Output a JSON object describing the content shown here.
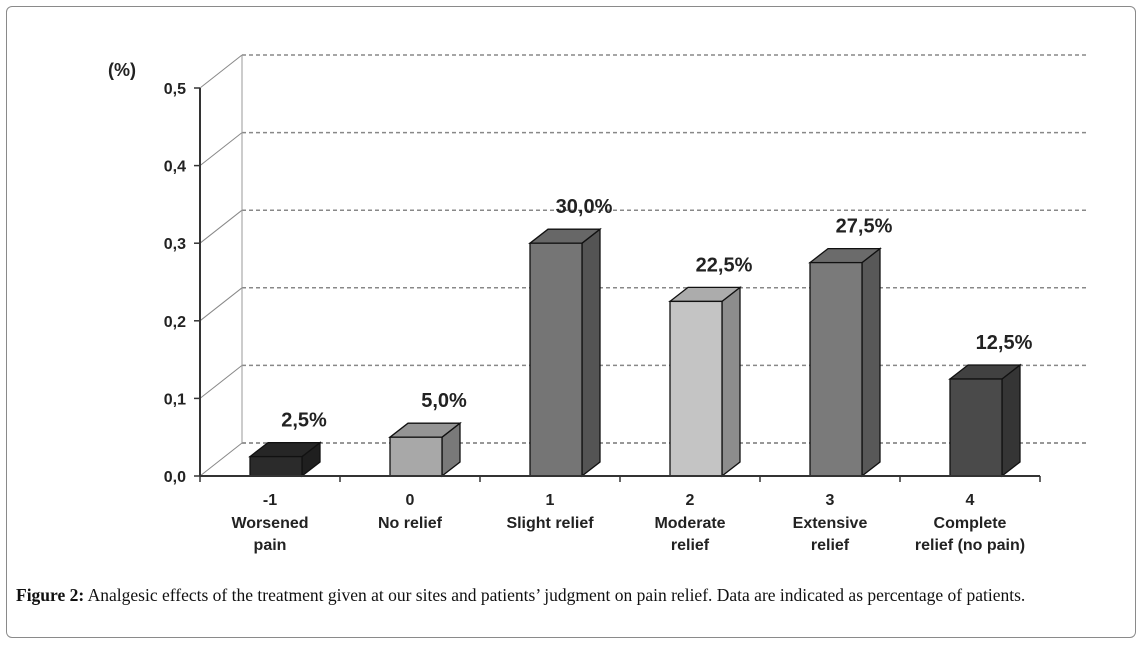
{
  "chart_data": {
    "type": "bar",
    "unit_label": "(%)",
    "ylim": [
      0,
      0.5
    ],
    "y_ticks": [
      0.0,
      0.1,
      0.2,
      0.3,
      0.4,
      0.5
    ],
    "y_tick_labels": [
      "0,0",
      "0,1",
      "0,2",
      "0,3",
      "0,4",
      "0,5"
    ],
    "categories": [
      {
        "code": "-1",
        "label_lines": [
          "Worsened",
          "pain"
        ]
      },
      {
        "code": "0",
        "label_lines": [
          "No relief"
        ]
      },
      {
        "code": "1",
        "label_lines": [
          "Slight relief"
        ]
      },
      {
        "code": "2",
        "label_lines": [
          "Moderate",
          "relief"
        ]
      },
      {
        "code": "3",
        "label_lines": [
          "Extensive",
          "relief"
        ]
      },
      {
        "code": "4",
        "label_lines": [
          "Complete",
          "relief (no pain)"
        ]
      }
    ],
    "values": [
      0.025,
      0.05,
      0.3,
      0.225,
      0.275,
      0.125
    ],
    "value_labels": [
      "2,5%",
      "5,0%",
      "30,0%",
      "22,5%",
      "27,5%",
      "12,5%"
    ],
    "bar_colors": [
      "#2b2b2b",
      "#a8a8a8",
      "#757575",
      "#c4c4c4",
      "#7a7a7a",
      "#4a4a4a"
    ],
    "grid": true
  },
  "caption": {
    "label": "Figure 2:",
    "text": " Analgesic effects of the treatment given at our sites and patients’ judgment on pain relief. Data are indicated as percentage of patients."
  }
}
